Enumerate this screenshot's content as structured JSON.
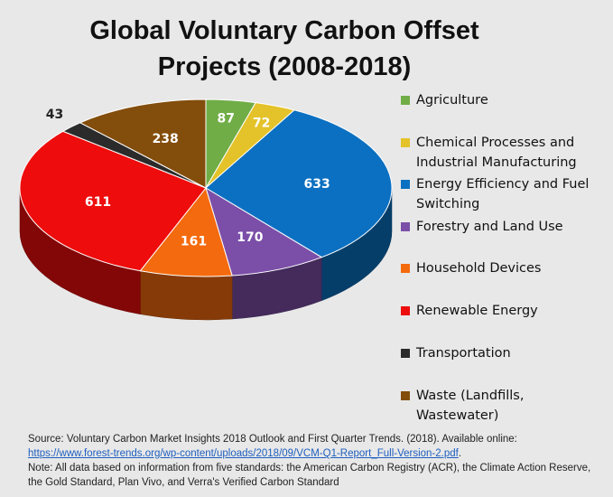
{
  "chart_data": {
    "type": "pie",
    "title_line1": "Global Voluntary Carbon Offset",
    "title_line2": "Projects (2008-2018)",
    "slices": [
      {
        "label": "Agriculture",
        "value": 87,
        "color": "#70ad47"
      },
      {
        "label": "Chemical Processes and Industrial Manufacturing",
        "value": 72,
        "color": "#e4c229"
      },
      {
        "label": "Energy Efficiency and Fuel Switching",
        "value": 633,
        "color": "#0b70c1"
      },
      {
        "label": "Forestry and Land Use",
        "value": 170,
        "color": "#7b4fa8"
      },
      {
        "label": "Household Devices",
        "value": 161,
        "color": "#f46a0e"
      },
      {
        "label": "Renewable Energy",
        "value": 611,
        "color": "#ee0c0c"
      },
      {
        "label": "Transportation",
        "value": 43,
        "color": "#2b2b2b"
      },
      {
        "label": "Waste (Landfills, Wastewater)",
        "value": 238,
        "color": "#834d0c"
      }
    ],
    "legend_position": "right",
    "data_labels": true
  },
  "legend": [
    "Agriculture",
    "Chemical Processes and Industrial Manufacturing",
    "Energy Efficiency and Fuel Switching",
    "Forestry and Land Use",
    "Household Devices",
    "Renewable Energy",
    "Transportation",
    "Waste (Landfills, Wastewater)"
  ],
  "source": {
    "prefix": "Source: Voluntary Carbon Market Insights 2018 Outlook and First Quarter Trends. (2018). Available online:",
    "link": "https://www.forest-trends.org/wp-content/uploads/2018/09/VCM-Q1-Report_Full-Version-2.pdf",
    "link_suffix": ".",
    "note": "Note: All data based on information from five standards: the American Carbon Registry (ACR), the Climate Action Reserve, the Gold Standard, Plan Vivo, and Verra's Verified Carbon Standard"
  }
}
